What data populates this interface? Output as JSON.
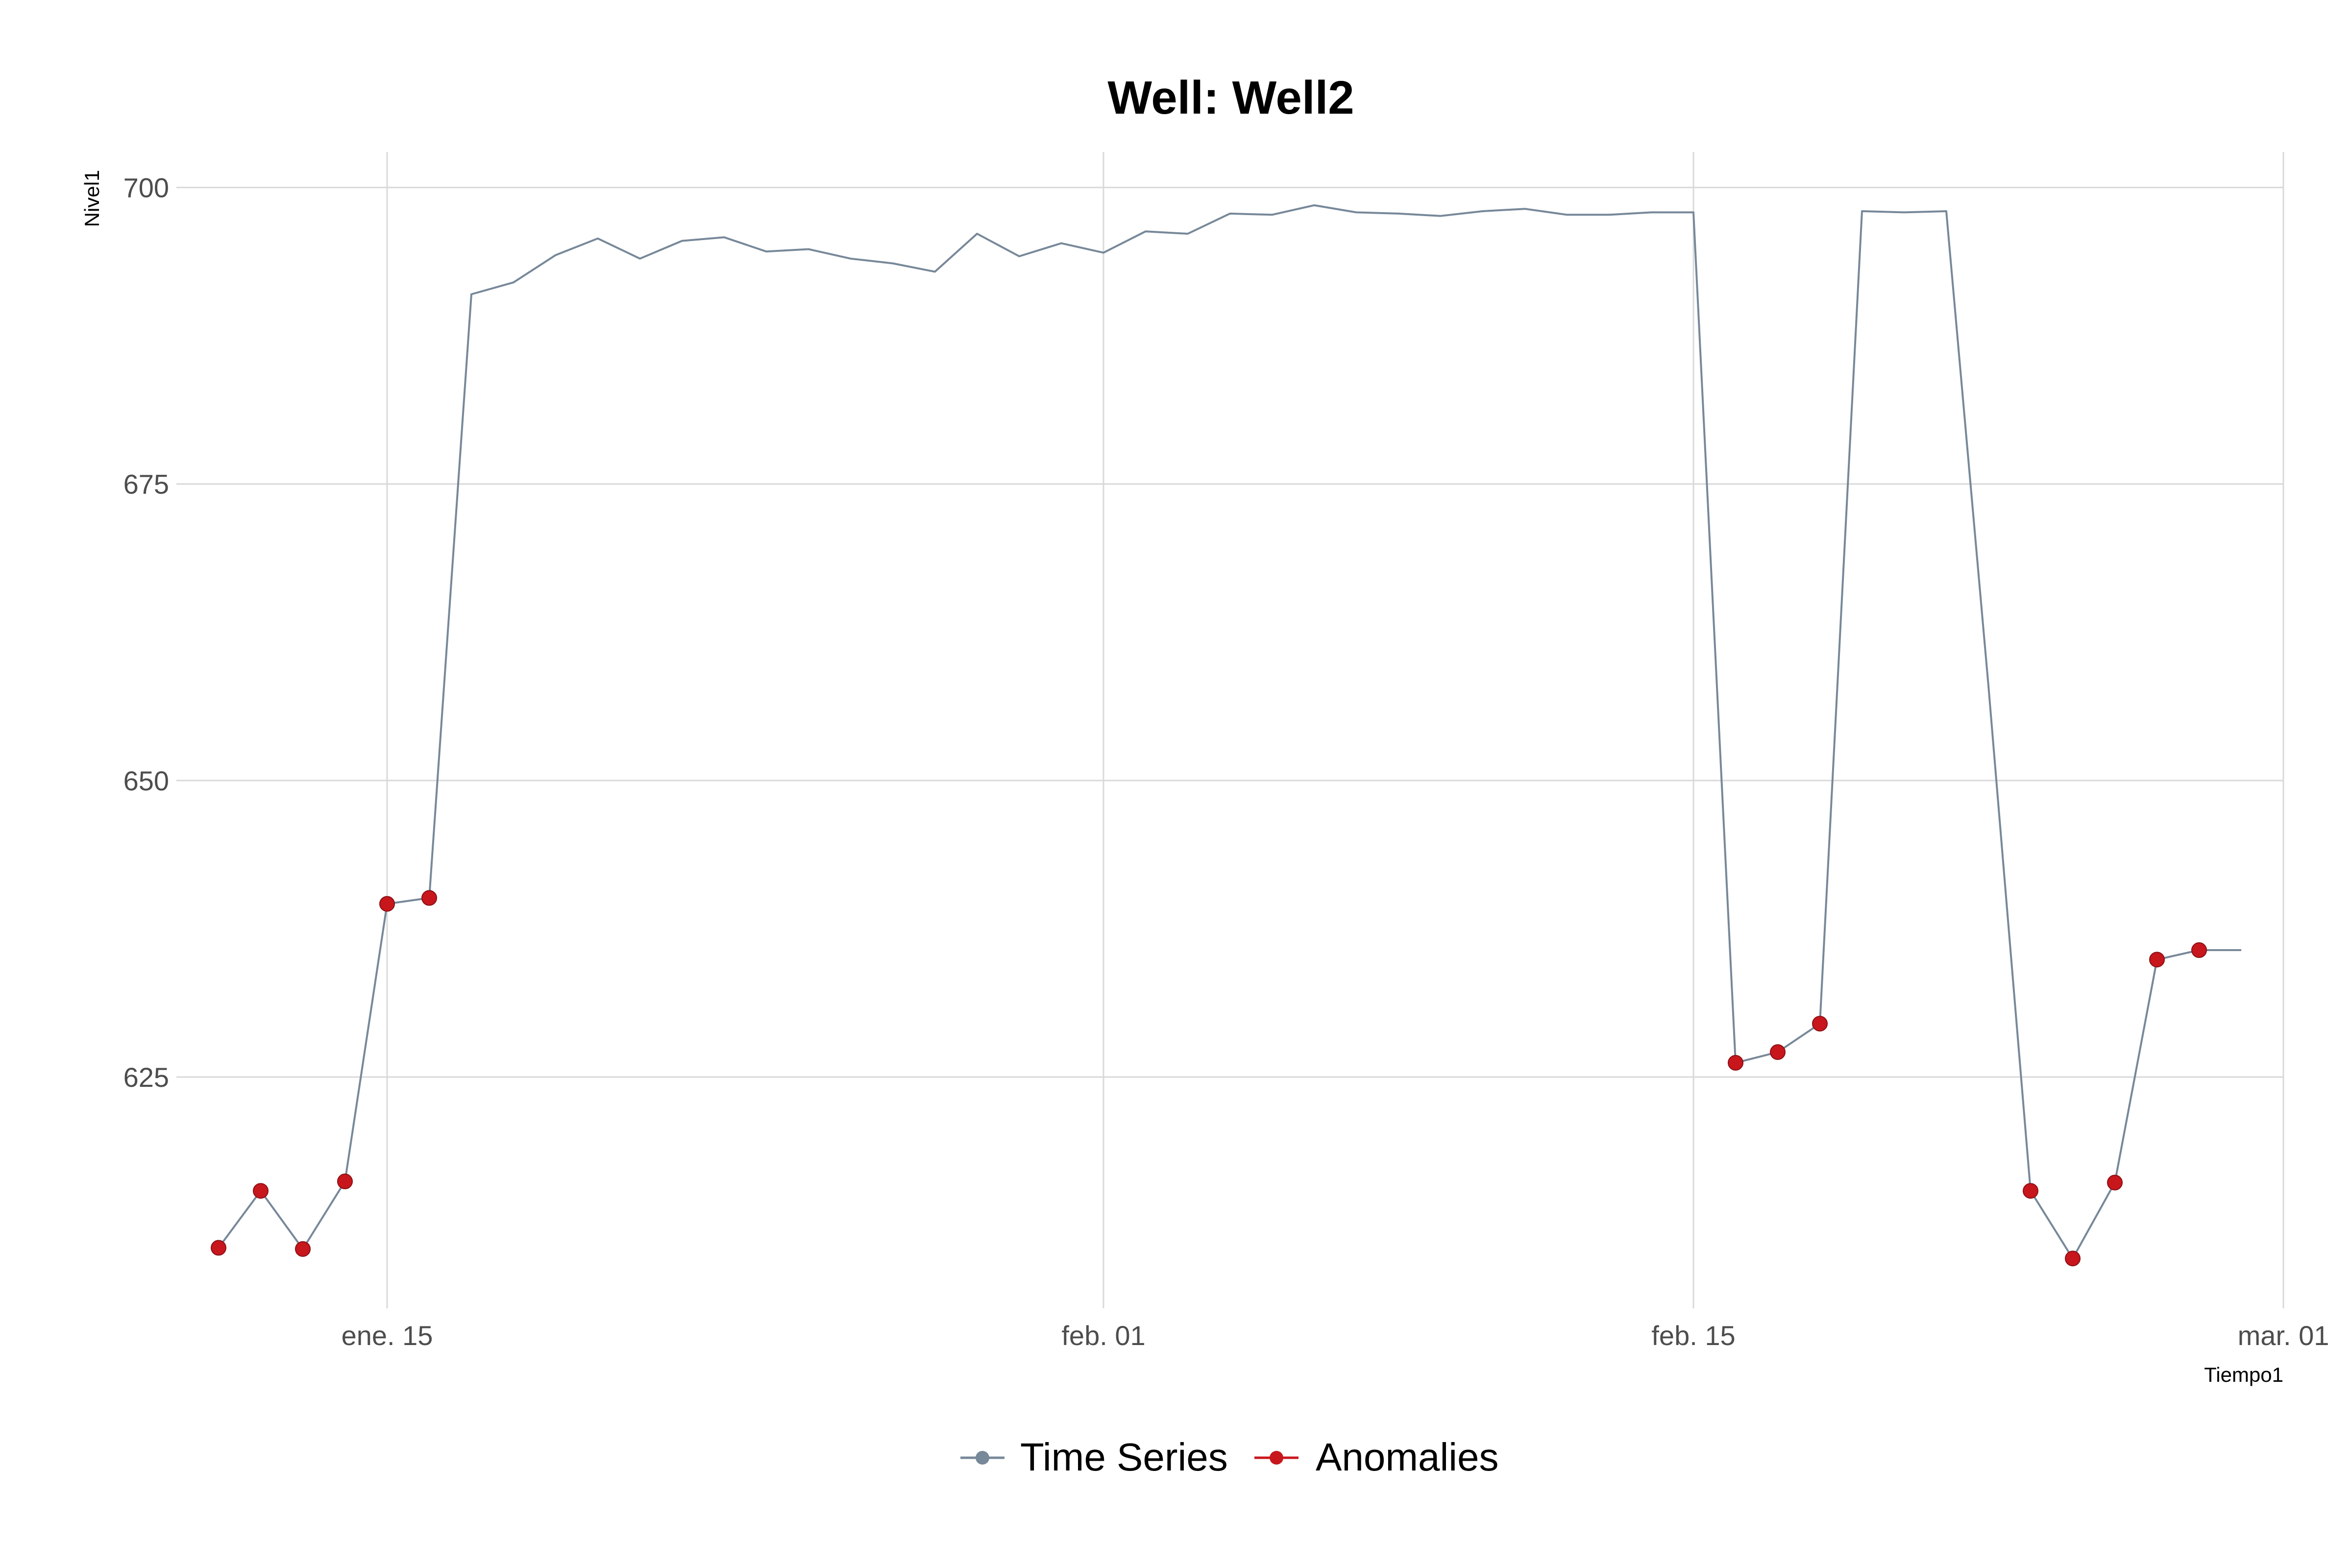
{
  "chart_data": {
    "type": "line",
    "title": "Well: Well2",
    "xlabel": "Tiempo1",
    "ylabel": "Nivel1",
    "x_ticks": [
      "ene. 15",
      "feb. 01",
      "feb. 15",
      "mar. 01"
    ],
    "y_ticks": [
      "625",
      "650",
      "675",
      "700"
    ],
    "ylim": [
      605.5,
      703
    ],
    "xlim": [
      "2023-01-10",
      "2023-03-01"
    ],
    "grid": true,
    "legend": {
      "position": "bottom",
      "entries": [
        {
          "label": "Time Series",
          "color": "#778899"
        },
        {
          "label": "Anomalies",
          "color": "#c8161d"
        }
      ]
    },
    "series": [
      {
        "name": "Time Series",
        "color": "#778899",
        "x": [
          "2023-01-11",
          "2023-01-12",
          "2023-01-13",
          "2023-01-14",
          "2023-01-15",
          "2023-01-16",
          "2023-01-17",
          "2023-01-18",
          "2023-01-19",
          "2023-01-20",
          "2023-01-21",
          "2023-01-22",
          "2023-01-23",
          "2023-01-24",
          "2023-01-25",
          "2023-01-26",
          "2023-01-27",
          "2023-01-28",
          "2023-01-29",
          "2023-01-30",
          "2023-01-31",
          "2023-02-01",
          "2023-02-02",
          "2023-02-03",
          "2023-02-04",
          "2023-02-05",
          "2023-02-06",
          "2023-02-07",
          "2023-02-08",
          "2023-02-09",
          "2023-02-10",
          "2023-02-11",
          "2023-02-12",
          "2023-02-13",
          "2023-02-14",
          "2023-02-15",
          "2023-02-16",
          "2023-02-17",
          "2023-02-18",
          "2023-02-19",
          "2023-02-20",
          "2023-02-21",
          "2023-02-22",
          "2023-02-23",
          "2023-02-24",
          "2023-02-25",
          "2023-02-26",
          "2023-02-27",
          "2023-02-28"
        ],
        "values": [
          610.6,
          615.4,
          610.5,
          616.2,
          639.6,
          640.1,
          691.0,
          692.0,
          694.3,
          695.7,
          694.0,
          695.5,
          695.8,
          694.6,
          694.8,
          694.0,
          693.6,
          692.9,
          696.1,
          694.2,
          695.3,
          694.5,
          696.3,
          696.1,
          697.8,
          697.7,
          698.5,
          697.9,
          697.8,
          697.6,
          698.0,
          698.2,
          697.7,
          697.7,
          697.9,
          697.9,
          626.2,
          627.1,
          629.5,
          698.0,
          697.9,
          698.0,
          658.0,
          615.4,
          609.7,
          616.1,
          634.9,
          635.7,
          635.7
        ]
      },
      {
        "name": "Anomalies",
        "color": "#c8161d",
        "x": [
          "2023-01-11",
          "2023-01-12",
          "2023-01-13",
          "2023-01-14",
          "2023-01-15",
          "2023-01-16",
          "2023-02-16",
          "2023-02-17",
          "2023-02-18",
          "2023-02-23",
          "2023-02-24",
          "2023-02-25",
          "2023-02-26",
          "2023-02-27"
        ],
        "values": [
          610.6,
          615.4,
          610.5,
          616.2,
          639.6,
          640.1,
          626.2,
          627.1,
          629.5,
          615.4,
          609.7,
          616.1,
          634.9,
          635.7
        ]
      }
    ]
  }
}
